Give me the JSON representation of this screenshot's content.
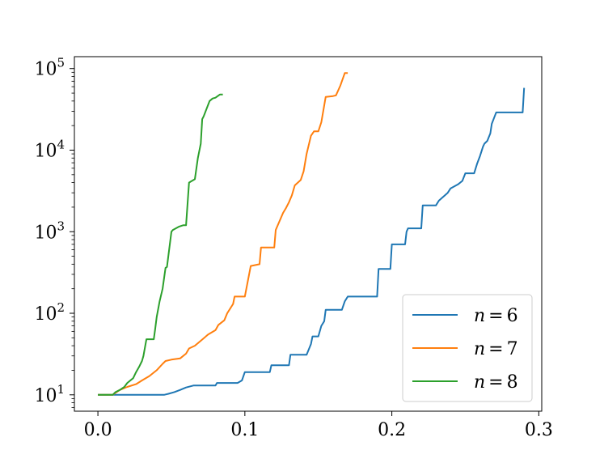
{
  "chart_data": {
    "type": "line",
    "title": "",
    "xlabel": "",
    "ylabel": "",
    "xlim": [
      -0.016,
      0.302
    ],
    "ylim": [
      6.3,
      140000
    ],
    "yscale": "log",
    "grid": false,
    "legend_position": "lower-right",
    "x_ticks": [
      {
        "value": 0.0,
        "label": "0.0"
      },
      {
        "value": 0.1,
        "label": "0.1"
      },
      {
        "value": 0.2,
        "label": "0.2"
      },
      {
        "value": 0.3,
        "label": "0.3"
      }
    ],
    "y_ticks": [
      {
        "value": 10,
        "base": "10",
        "exp": "1"
      },
      {
        "value": 100,
        "base": "10",
        "exp": "2"
      },
      {
        "value": 1000,
        "base": "10",
        "exp": "3"
      },
      {
        "value": 10000,
        "base": "10",
        "exp": "4"
      },
      {
        "value": 100000,
        "base": "10",
        "exp": "5"
      }
    ],
    "series": [
      {
        "name": "n = 6",
        "label_var": "n",
        "label_op": "=",
        "label_num": "6",
        "color": "#1f77b4",
        "x": [
          0.0,
          0.045,
          0.048,
          0.052,
          0.056,
          0.06,
          0.065,
          0.08,
          0.081,
          0.095,
          0.098,
          0.1,
          0.117,
          0.118,
          0.13,
          0.131,
          0.142,
          0.145,
          0.146,
          0.15,
          0.152,
          0.154,
          0.155,
          0.166,
          0.168,
          0.17,
          0.19,
          0.191,
          0.199,
          0.2,
          0.209,
          0.21,
          0.211,
          0.22,
          0.221,
          0.23,
          0.232,
          0.238,
          0.24,
          0.245,
          0.248,
          0.25,
          0.256,
          0.258,
          0.26,
          0.262,
          0.263,
          0.265,
          0.266,
          0.267,
          0.268,
          0.27,
          0.271,
          0.289,
          0.29
        ],
        "y": [
          10,
          10,
          10.3,
          10.8,
          11.5,
          12.3,
          13,
          13,
          14,
          14,
          15,
          19,
          19,
          23,
          23,
          31,
          31,
          42,
          52,
          52,
          70,
          80,
          110,
          110,
          140,
          160,
          160,
          350,
          350,
          700,
          700,
          1000,
          1100,
          1100,
          2100,
          2100,
          2400,
          3000,
          3400,
          3800,
          4200,
          5200,
          5200,
          6800,
          8500,
          11000,
          12000,
          13000,
          14500,
          16000,
          21000,
          26000,
          29000,
          29000,
          58000
        ]
      },
      {
        "name": "n = 7",
        "label_var": "n",
        "label_op": "=",
        "label_num": "7",
        "color": "#ff7f0e",
        "x": [
          0.0,
          0.01,
          0.015,
          0.02,
          0.026,
          0.03,
          0.035,
          0.04,
          0.044,
          0.046,
          0.05,
          0.056,
          0.06,
          0.062,
          0.066,
          0.07,
          0.075,
          0.08,
          0.082,
          0.086,
          0.088,
          0.092,
          0.093,
          0.1,
          0.104,
          0.11,
          0.111,
          0.12,
          0.121,
          0.126,
          0.128,
          0.13,
          0.132,
          0.134,
          0.138,
          0.14,
          0.142,
          0.145,
          0.147,
          0.15,
          0.152,
          0.155,
          0.16,
          0.162,
          0.165,
          0.168,
          0.17
        ],
        "y": [
          10,
          10,
          11.5,
          12.5,
          13.5,
          15,
          17,
          20,
          24,
          26,
          27,
          28,
          32,
          37,
          40,
          46,
          55,
          62,
          72,
          82,
          100,
          130,
          160,
          160,
          380,
          400,
          640,
          640,
          1050,
          1700,
          1950,
          2300,
          2800,
          3700,
          4300,
          5500,
          9000,
          15000,
          17000,
          17000,
          22000,
          45000,
          46000,
          47000,
          62000,
          88000,
          88000
        ]
      },
      {
        "name": "n = 8",
        "label_var": "n",
        "label_op": "=",
        "label_num": "8",
        "color": "#2ca02c",
        "x": [
          0.0,
          0.01,
          0.012,
          0.015,
          0.018,
          0.02,
          0.024,
          0.026,
          0.028,
          0.03,
          0.031,
          0.033,
          0.038,
          0.039,
          0.04,
          0.042,
          0.044,
          0.046,
          0.047,
          0.05,
          0.051,
          0.055,
          0.058,
          0.06,
          0.062,
          0.063,
          0.066,
          0.068,
          0.07,
          0.071,
          0.072,
          0.076,
          0.078,
          0.08,
          0.083,
          0.085
        ],
        "y": [
          10,
          10,
          10.8,
          11.5,
          12.5,
          14,
          16,
          19,
          22,
          26,
          30,
          48,
          48,
          65,
          90,
          140,
          200,
          360,
          370,
          1000,
          1050,
          1150,
          1200,
          1200,
          4000,
          4100,
          4400,
          8000,
          12000,
          24000,
          26000,
          40000,
          43000,
          44000,
          48000,
          48000
        ]
      }
    ]
  }
}
